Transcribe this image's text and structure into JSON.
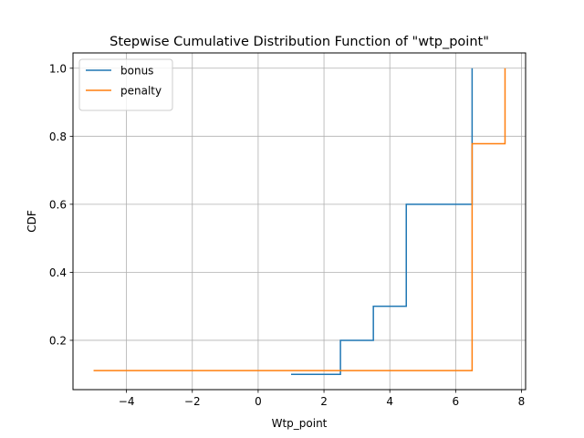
{
  "chart_data": {
    "type": "line",
    "title": "Stepwise Cumulative Distribution Function of \"wtp_point\"",
    "xlabel": "Wtp_point",
    "ylabel": "CDF",
    "xlim": [
      -5.625,
      8.125
    ],
    "ylim": [
      0.055,
      1.045
    ],
    "xticks": [
      -4,
      -2,
      0,
      2,
      4,
      6,
      8
    ],
    "xtick_labels": [
      "−4",
      "−2",
      "0",
      "2",
      "4",
      "6",
      "8"
    ],
    "yticks": [
      0.2,
      0.4,
      0.6,
      0.8,
      1.0
    ],
    "ytick_labels": [
      "0.2",
      "0.4",
      "0.6",
      "0.8",
      "1.0"
    ],
    "grid": true,
    "legend_position": "top-left",
    "step": "post",
    "series": [
      {
        "name": "bonus",
        "color": "#1f77b4",
        "x": [
          1.0,
          2.5,
          3.5,
          4.5,
          6.5
        ],
        "y": [
          0.1,
          0.2,
          0.3,
          0.6,
          0.9
        ],
        "y_end": 1.0
      },
      {
        "name": "penalty",
        "color": "#ff7f0e",
        "x": [
          -5.0,
          3.5,
          6.5,
          7.5
        ],
        "y": [
          0.111,
          0.111,
          0.778,
          0.889
        ],
        "y_end": 1.0
      }
    ]
  }
}
